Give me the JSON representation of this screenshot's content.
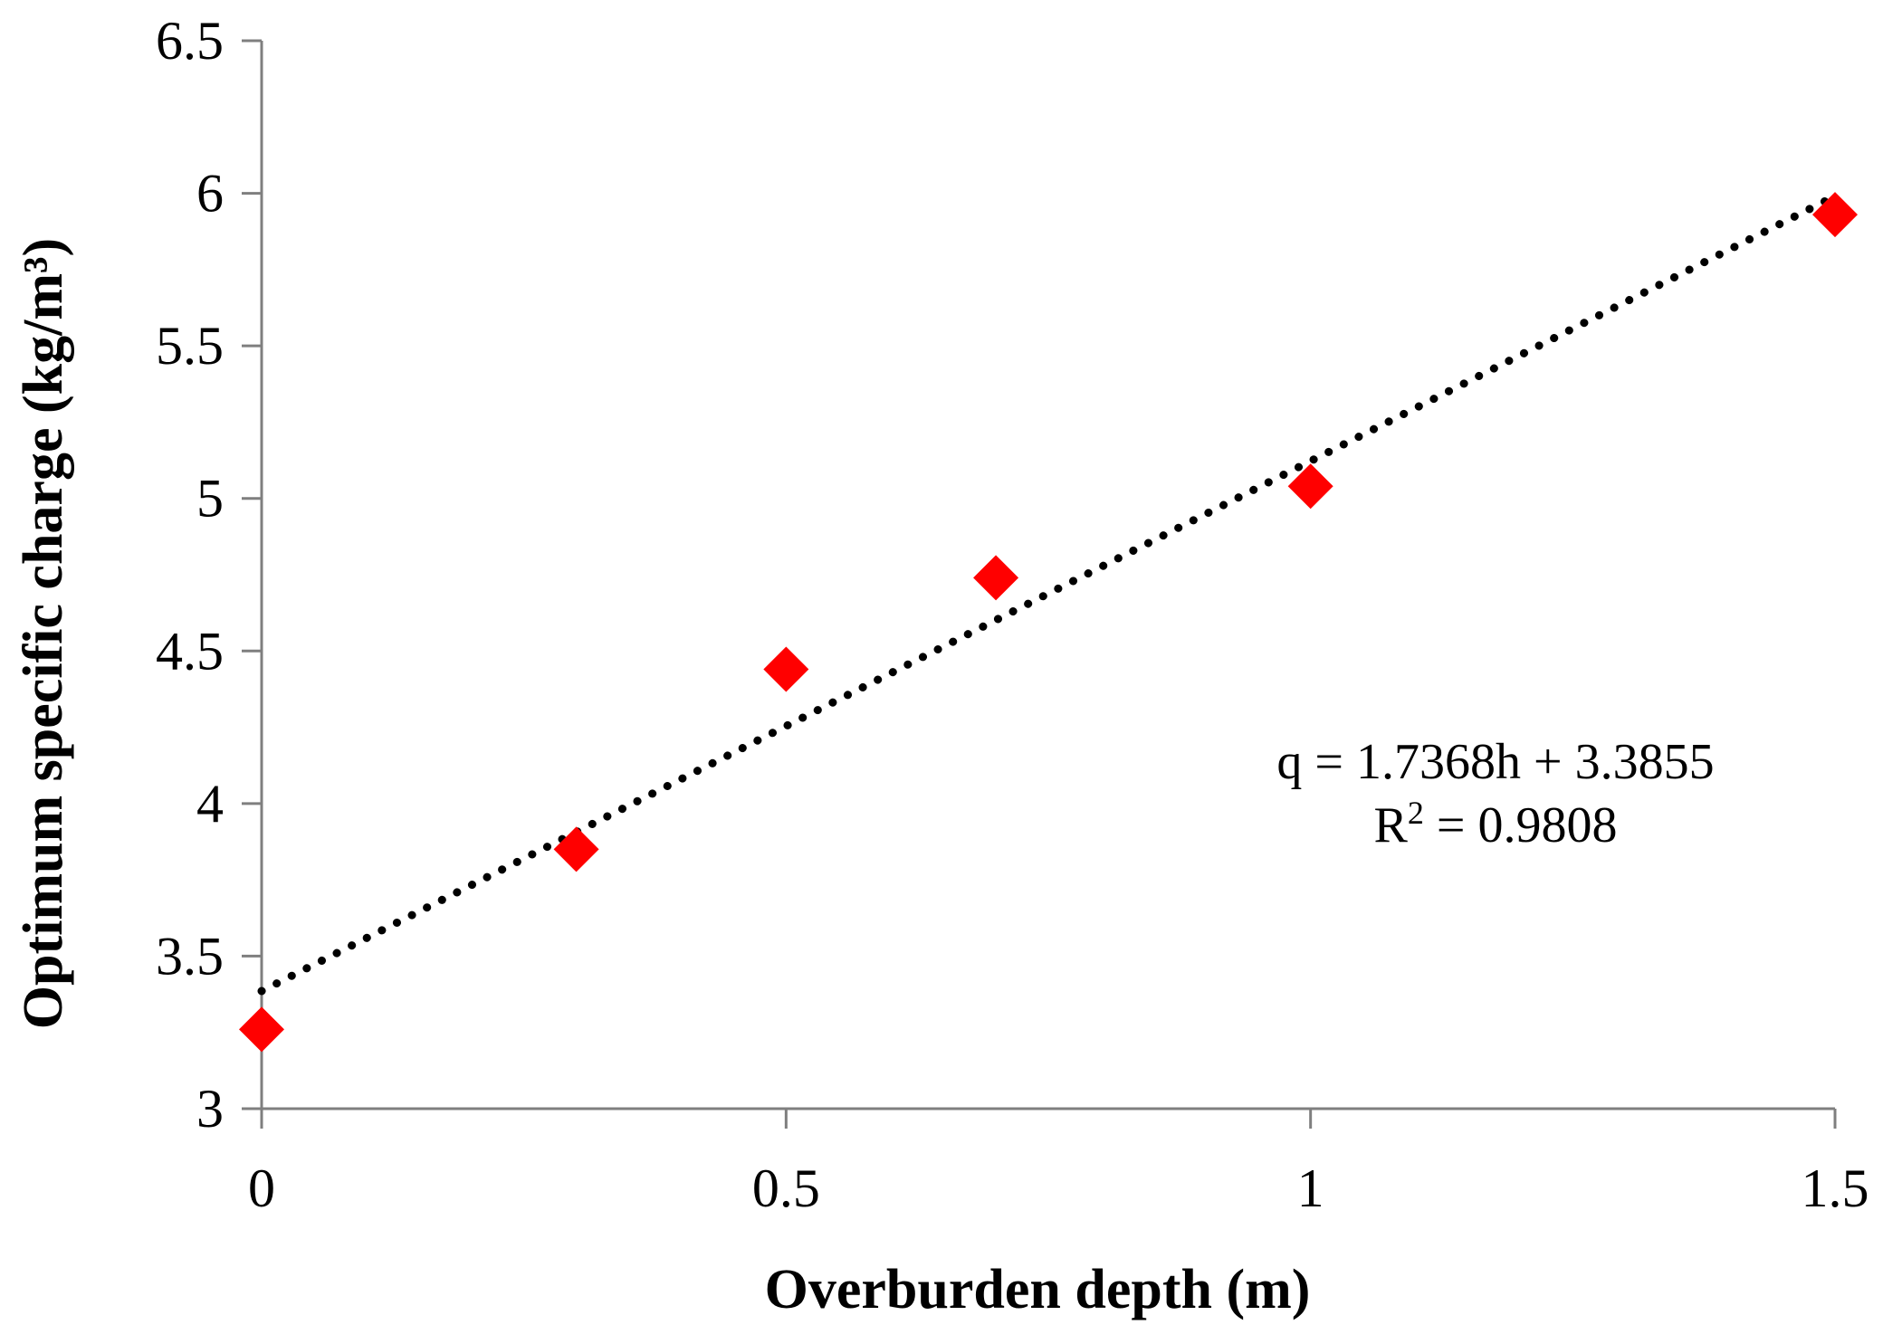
{
  "chart_data": {
    "type": "scatter",
    "title": "",
    "xlabel": "Overburden depth (m)",
    "ylabel": "Optimum specific charge (kg/m³)",
    "xlim": [
      0,
      1.5
    ],
    "ylim": [
      3,
      6.5
    ],
    "xticks": [
      0,
      0.5,
      1,
      1.5
    ],
    "xtick_labels": [
      "0",
      "0.5",
      "1",
      "1.5"
    ],
    "yticks": [
      3,
      3.5,
      4,
      4.5,
      5,
      5.5,
      6,
      6.5
    ],
    "ytick_labels": [
      "3",
      "3.5",
      "4",
      "4.5",
      "5",
      "5.5",
      "6",
      "6.5"
    ],
    "grid": false,
    "series": [
      {
        "name": "Optimum specific charge",
        "marker": "diamond",
        "color": "#ff0000",
        "x": [
          0,
          0.3,
          0.5,
          0.7,
          1.0,
          1.5
        ],
        "y": [
          3.26,
          3.85,
          4.44,
          4.74,
          5.04,
          5.93
        ]
      }
    ],
    "trendline": {
      "type": "linear",
      "slope": 1.7368,
      "intercept": 3.3855,
      "style": "dotted",
      "color": "#000000",
      "x_range": [
        0,
        1.5
      ]
    },
    "annotations": {
      "equation": "q = 1.7368h + 3.3855",
      "r2_prefix": "R",
      "r2_superscript": "2",
      "r2_value": " = 0.9808"
    }
  }
}
